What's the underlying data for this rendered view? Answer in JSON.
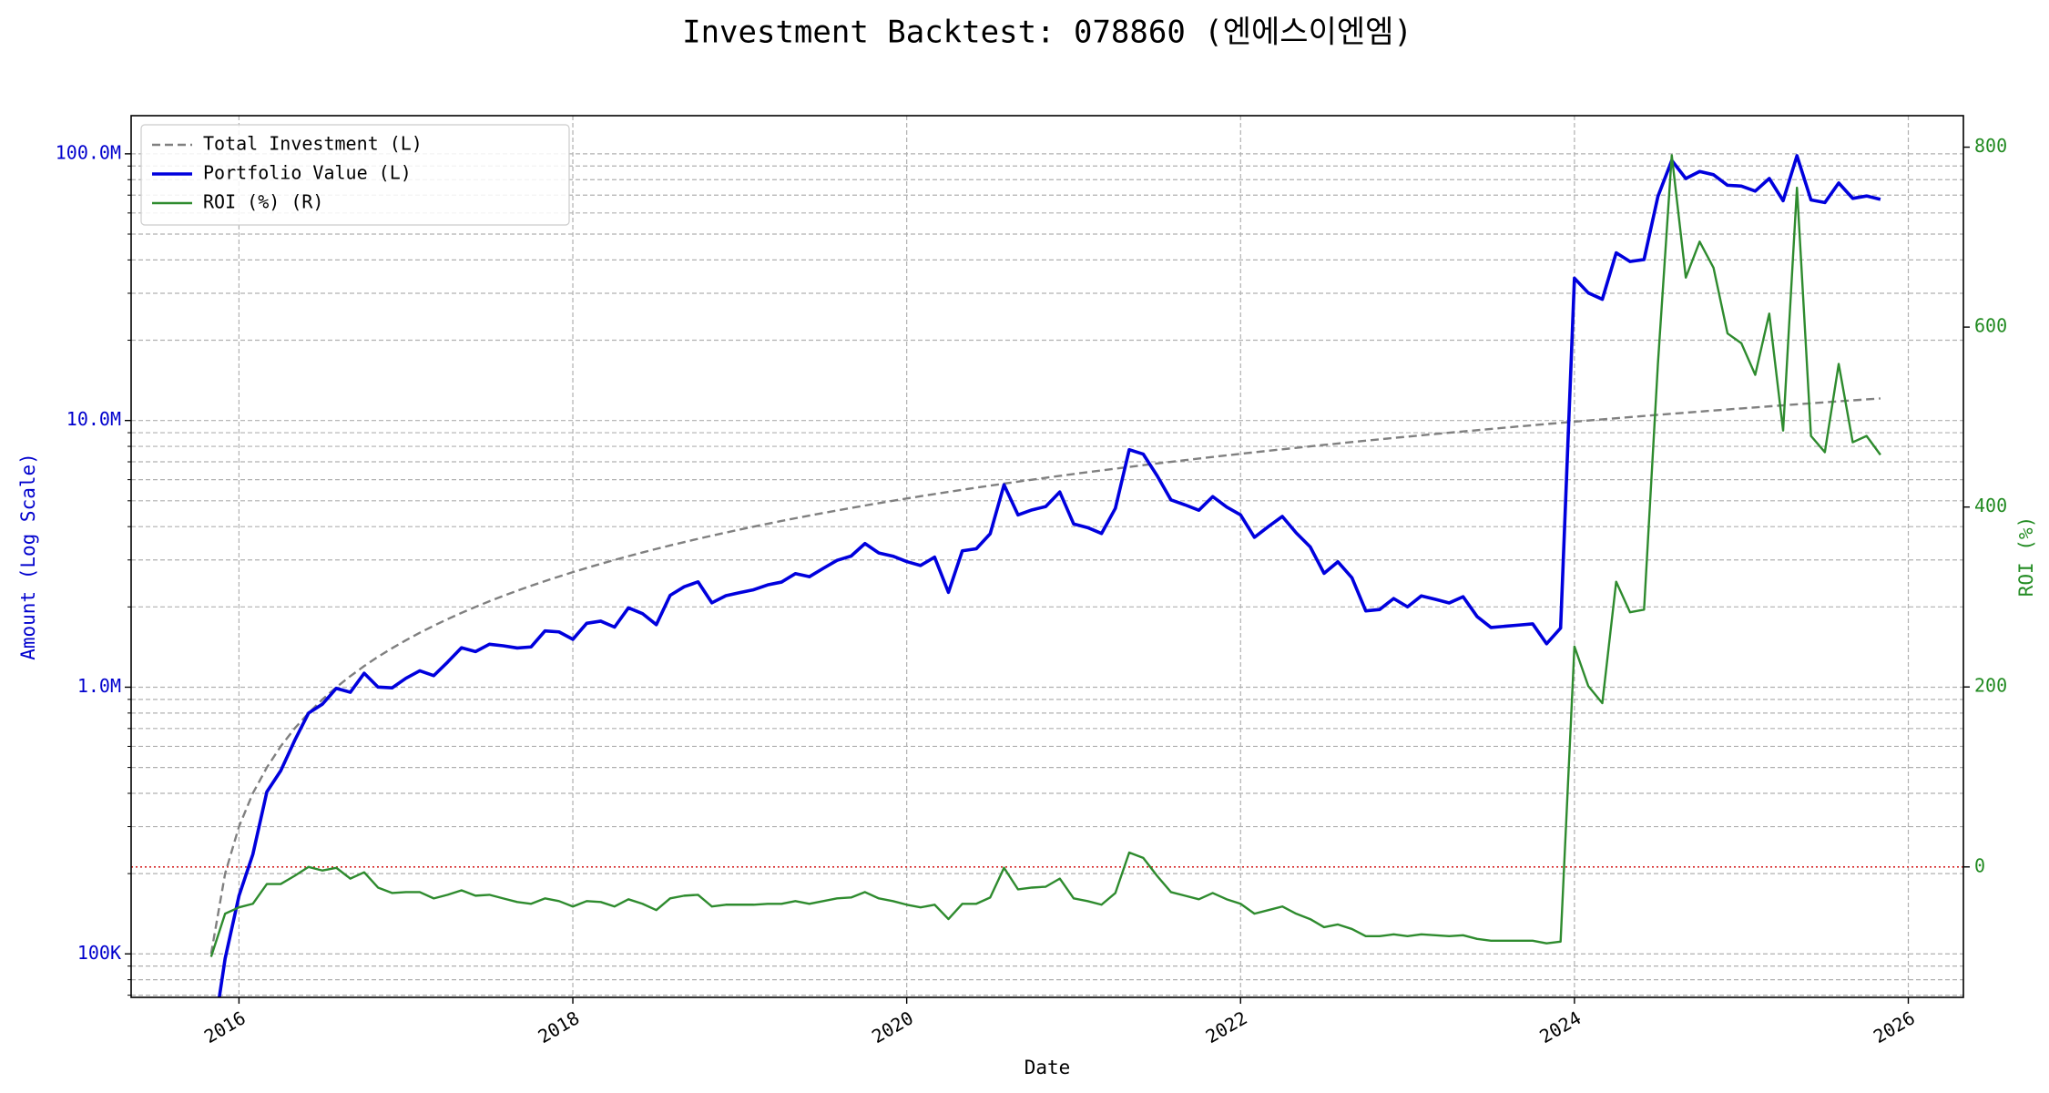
{
  "chart_data": {
    "type": "line",
    "title": "Investment Backtest: 078860 (엔에스이엔엠)",
    "xlabel": "Date",
    "ylabel": "Amount (Log Scale)",
    "y2label": "ROI (%)",
    "ylabel_color": "#0000cd",
    "y2label_color": "#228b22",
    "yscale": "log",
    "grid": true,
    "minor_grid": true,
    "legend": "upper left",
    "xlim": [
      2015.354,
      2026.33
    ],
    "xticks": [
      2016,
      2018,
      2020,
      2022,
      2024,
      2026
    ],
    "ylim": [
      68700,
      139000000
    ],
    "yticks": [
      {
        "value": 100000,
        "label": "100K"
      },
      {
        "value": 1000000,
        "label": "1.0M"
      },
      {
        "value": 10000000,
        "label": "10.0M"
      },
      {
        "value": 100000000,
        "label": "100.0M"
      }
    ],
    "yminorticks": [
      70000,
      80000,
      90000,
      200000,
      300000,
      400000,
      500000,
      600000,
      700000,
      800000,
      900000,
      2000000,
      3000000,
      4000000,
      5000000,
      6000000,
      7000000,
      8000000,
      9000000,
      20000000,
      30000000,
      40000000,
      50000000,
      60000000,
      70000000,
      80000000,
      90000000
    ],
    "y2lim": [
      -145,
      835
    ],
    "y2ticks": [
      0,
      200,
      400,
      600,
      800
    ],
    "reference_line": {
      "axis": "y2",
      "value": 0,
      "color": "#d62728"
    },
    "x": [
      2015.833,
      2015.917,
      2016,
      2016.083,
      2016.167,
      2016.25,
      2016.333,
      2016.417,
      2016.5,
      2016.583,
      2016.667,
      2016.75,
      2016.833,
      2016.917,
      2017,
      2017.083,
      2017.167,
      2017.25,
      2017.333,
      2017.417,
      2017.5,
      2017.583,
      2017.667,
      2017.75,
      2017.833,
      2017.917,
      2018,
      2018.083,
      2018.167,
      2018.25,
      2018.333,
      2018.417,
      2018.5,
      2018.583,
      2018.667,
      2018.75,
      2018.833,
      2018.917,
      2019,
      2019.083,
      2019.167,
      2019.25,
      2019.333,
      2019.417,
      2019.5,
      2019.583,
      2019.667,
      2019.75,
      2019.833,
      2019.917,
      2020,
      2020.083,
      2020.167,
      2020.25,
      2020.333,
      2020.417,
      2020.5,
      2020.583,
      2020.667,
      2020.75,
      2020.833,
      2020.917,
      2021,
      2021.083,
      2021.167,
      2021.25,
      2021.333,
      2021.417,
      2021.5,
      2021.583,
      2021.667,
      2021.75,
      2021.833,
      2021.917,
      2022,
      2022.083,
      2022.167,
      2022.25,
      2022.333,
      2022.417,
      2022.5,
      2022.583,
      2022.667,
      2022.75,
      2022.833,
      2022.917,
      2023,
      2023.083,
      2023.167,
      2023.25,
      2023.333,
      2023.417,
      2023.5,
      2023.583,
      2023.667,
      2023.75,
      2023.833,
      2023.917,
      2024,
      2024.083,
      2024.167,
      2024.25,
      2024.333,
      2024.417,
      2024.5,
      2024.583,
      2024.667,
      2024.75,
      2024.833,
      2024.917,
      2025,
      2025.083,
      2025.167,
      2025.25,
      2025.333,
      2025.417,
      2025.5,
      2025.583,
      2025.667,
      2025.75,
      2025.833
    ],
    "series": [
      {
        "name": "Total Investment (L)",
        "color": "#808080",
        "linestyle": "dashed",
        "axis": "y",
        "values": [
          100000,
          200000,
          300000,
          400000,
          500000,
          600000,
          700000,
          800000,
          900000,
          1000000,
          1100000,
          1200000,
          1300000,
          1400000,
          1500000,
          1600000,
          1700000,
          1800000,
          1900000,
          2000000,
          2100000,
          2200000,
          2300000,
          2400000,
          2500000,
          2600000,
          2700000,
          2800000,
          2900000,
          3000000,
          3100000,
          3200000,
          3300000,
          3400000,
          3500000,
          3600000,
          3700000,
          3800000,
          3900000,
          4000000,
          4100000,
          4200000,
          4300000,
          4400000,
          4500000,
          4600000,
          4700000,
          4800000,
          4900000,
          5000000,
          5100000,
          5200000,
          5300000,
          5400000,
          5500000,
          5600000,
          5700000,
          5800000,
          5900000,
          6000000,
          6100000,
          6200000,
          6300000,
          6400000,
          6500000,
          6600000,
          6700000,
          6800000,
          6900000,
          7000000,
          7100000,
          7200000,
          7300000,
          7400000,
          7500000,
          7600000,
          7700000,
          7800000,
          7900000,
          8000000,
          8100000,
          8200000,
          8300000,
          8400000,
          8500000,
          8600000,
          8700000,
          8800000,
          8900000,
          9000000,
          9100000,
          9200000,
          9300000,
          9400000,
          9500000,
          9600000,
          9700000,
          9800000,
          9900000,
          10000000,
          10100000,
          10200000,
          10300000,
          10400000,
          10500000,
          10600000,
          10700000,
          10800000,
          10900000,
          11000000,
          11100000,
          11200000,
          11300000,
          11400000,
          11500000,
          11600000,
          11700000,
          11800000,
          11900000,
          12000000,
          12100000
        ]
      },
      {
        "name": "Portfolio Value (L)",
        "color": "#0000dd",
        "linestyle": "solid",
        "axis": "y",
        "values": [
          0,
          96000,
          165000,
          236000,
          405000,
          486000,
          630000,
          800000,
          864000,
          990000,
          957000,
          1128000,
          1001000,
          994000,
          1080000,
          1152000,
          1105000,
          1242000,
          1406000,
          1360000,
          1449000,
          1430000,
          1403000,
          1416000,
          1625000,
          1612000,
          1512000,
          1736000,
          1769000,
          1680000,
          1984000,
          1888000,
          1716000,
          2210000,
          2380000,
          2484000,
          2072000,
          2204000,
          2262000,
          2320000,
          2419000,
          2478000,
          2666000,
          2596000,
          2790000,
          2990000,
          3102000,
          3456000,
          3185000,
          3100000,
          2958000,
          2860000,
          3074000,
          2268000,
          3245000,
          3304000,
          3762000,
          5742000,
          4425000,
          4620000,
          4758000,
          5394000,
          4095000,
          3968000,
          3770000,
          4686000,
          7772000,
          7480000,
          6210000,
          5040000,
          4828000,
          4608000,
          5183000,
          4736000,
          4425000,
          3648000,
          4004000,
          4368000,
          3792000,
          3360000,
          2673000,
          2952000,
          2573000,
          1932000,
          1955000,
          2150000,
          2001000,
          2200000,
          2136000,
          2070000,
          2184000,
          1840000,
          1674000,
          1692000,
          1710000,
          1728000,
          1455000,
          1666000,
          34155000,
          30100000,
          28482000,
          42534000,
          39449000,
          40144000,
          69195000,
          94446000,
          80785000,
          85860000,
          83494000,
          76230000,
          75702000,
          72464000,
          80795000,
          66690000,
          98325000,
          67164000,
          65637000,
          77762000,
          68068000,
          69480000,
          67518000
        ]
      },
      {
        "name": "ROI (%) (R)",
        "color": "#2e8b2e",
        "linestyle": "solid",
        "axis": "y2",
        "values": [
          -100,
          -52,
          -45,
          -41,
          -19,
          -19,
          -10,
          0,
          -4,
          -1,
          -13,
          -6,
          -23,
          -29,
          -28,
          -28,
          -35,
          -31,
          -26,
          -32,
          -31,
          -35,
          -39,
          -41,
          -35,
          -38,
          -44,
          -38,
          -39,
          -44,
          -36,
          -41,
          -48,
          -35,
          -32,
          -31,
          -44,
          -42,
          -42,
          -42,
          -41,
          -41,
          -38,
          -41,
          -38,
          -35,
          -34,
          -28,
          -35,
          -38,
          -42,
          -45,
          -42,
          -58,
          -41,
          -41,
          -34,
          -1,
          -25,
          -23,
          -22,
          -13,
          -35,
          -38,
          -42,
          -29,
          16,
          10,
          -10,
          -28,
          -32,
          -36,
          -29,
          -36,
          -41,
          -52,
          -48,
          -44,
          -52,
          -58,
          -67,
          -64,
          -69,
          -77,
          -77,
          -75,
          -77,
          -75,
          -76,
          -77,
          -76,
          -80,
          -82,
          -82,
          -82,
          -82,
          -85,
          -83,
          245,
          201,
          182,
          317,
          283,
          286,
          559,
          791,
          655,
          695,
          666,
          593,
          582,
          547,
          615,
          485,
          755,
          479,
          461,
          559,
          472,
          479,
          458
        ]
      }
    ]
  }
}
